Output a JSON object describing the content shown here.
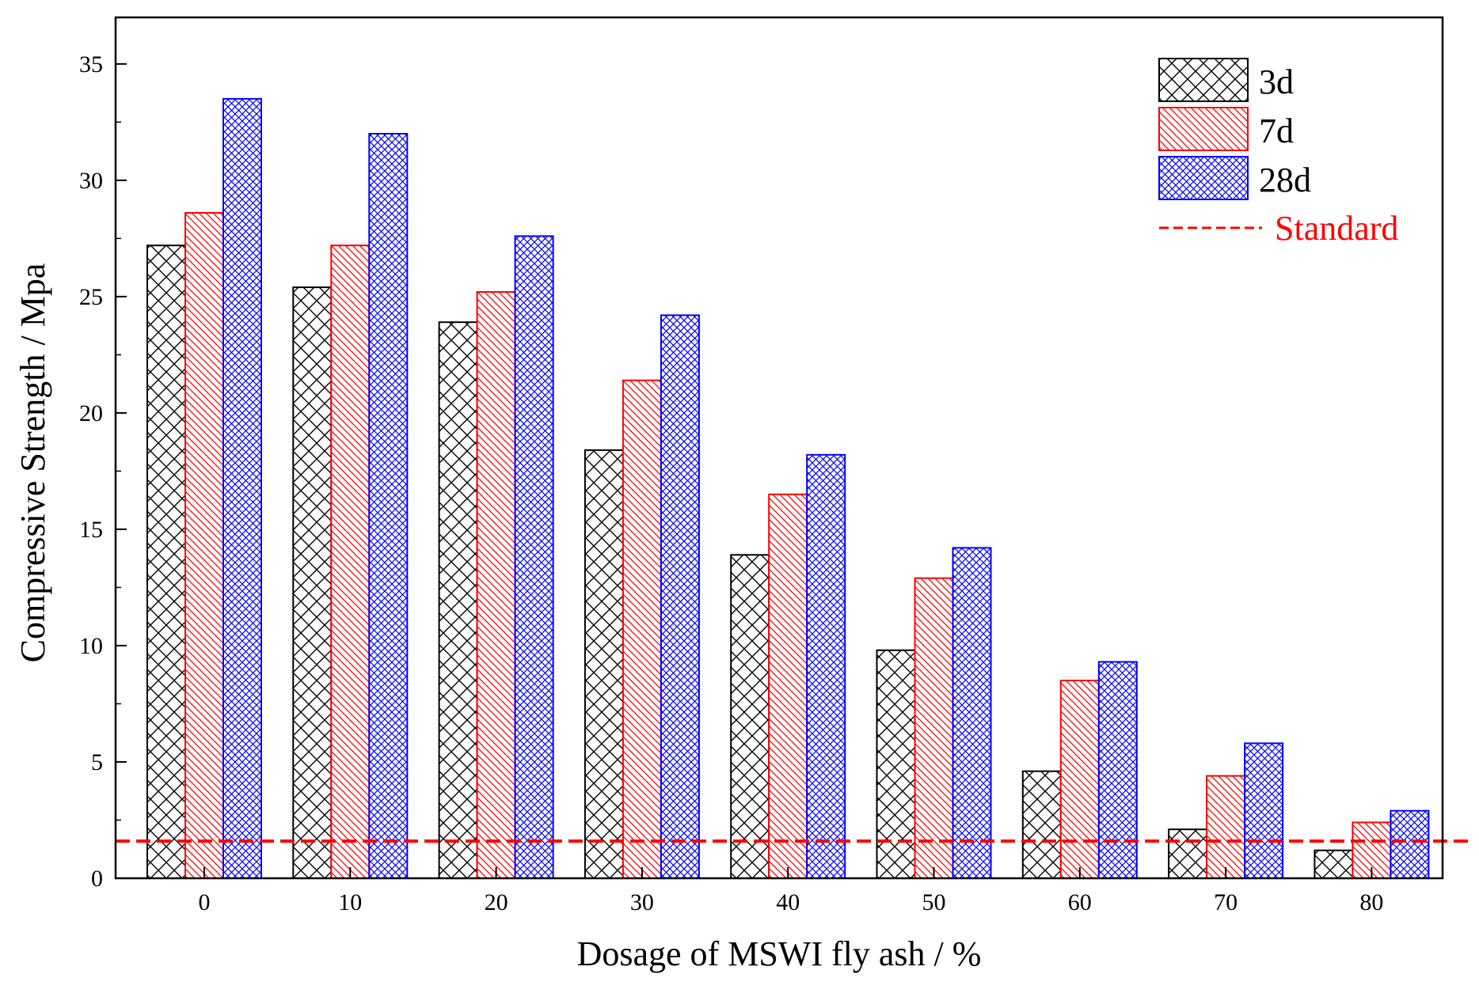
{
  "chart_data": {
    "type": "bar",
    "title": "",
    "xlabel": "Dosage of MSWI fly ash / %",
    "ylabel": "Compressive Strength / Mpa",
    "categories": [
      "0",
      "10",
      "20",
      "30",
      "40",
      "50",
      "60",
      "70",
      "80"
    ],
    "series": [
      {
        "name": "3d",
        "color": "#000000",
        "pattern": "crosshatch",
        "values": [
          27.2,
          25.4,
          23.9,
          18.4,
          13.9,
          9.8,
          4.6,
          2.1,
          1.2
        ]
      },
      {
        "name": "7d",
        "color": "#ff0000",
        "pattern": "diagonal",
        "values": [
          28.6,
          27.2,
          25.2,
          21.4,
          16.5,
          12.9,
          8.5,
          4.4,
          2.4
        ]
      },
      {
        "name": "28d",
        "color": "#0000ff",
        "pattern": "fine-crosshatch",
        "values": [
          33.5,
          32.0,
          27.6,
          24.2,
          18.2,
          14.2,
          9.3,
          5.8,
          2.9
        ]
      }
    ],
    "reference_line": {
      "name": "Standard",
      "value": 1.6,
      "color": "#ff0000",
      "style": "dashed"
    },
    "yticks": [
      0,
      5,
      10,
      15,
      20,
      25,
      30,
      35
    ],
    "ylim": [
      0,
      37
    ],
    "grid": false,
    "legend": "top-right"
  }
}
